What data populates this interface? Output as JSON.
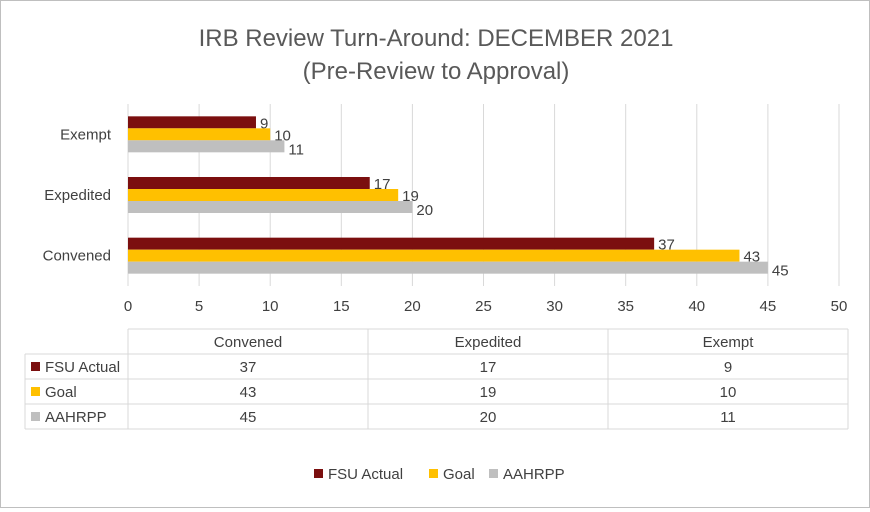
{
  "chart_data": {
    "type": "bar",
    "orientation": "horizontal",
    "title": "IRB Review Turn-Around: DECEMBER 2021",
    "subtitle": "(Pre-Review to Approval)",
    "categories": [
      "Convened",
      "Expedited",
      "Exempt"
    ],
    "series": [
      {
        "name": "FSU Actual",
        "values": [
          37,
          17,
          9
        ],
        "color": "#7b0f0f"
      },
      {
        "name": "Goal",
        "values": [
          43,
          19,
          10
        ],
        "color": "#ffc000"
      },
      {
        "name": "AAHRPP",
        "values": [
          45,
          20,
          11
        ],
        "color": "#bfbfbf"
      }
    ],
    "xlim": [
      0,
      50
    ],
    "x_ticks": [
      "0",
      "5",
      "10",
      "15",
      "20",
      "25",
      "30",
      "35",
      "40",
      "45",
      "50"
    ],
    "grid": "vertical",
    "legend_position": "bottom",
    "data_table": true
  }
}
